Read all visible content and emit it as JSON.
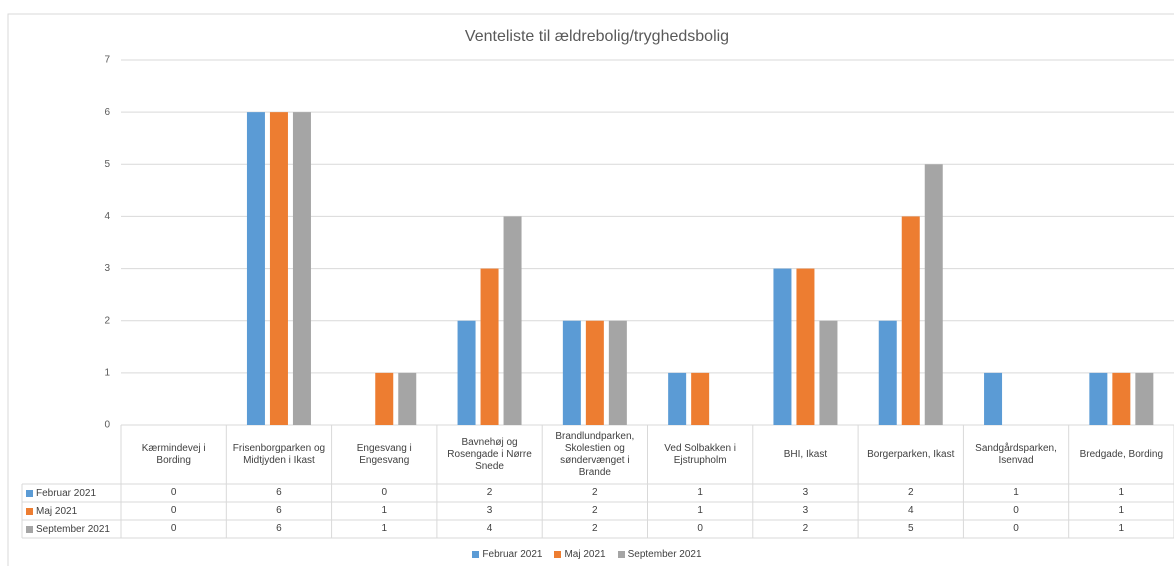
{
  "chart_data": {
    "type": "bar",
    "title": "Venteliste til ældrebolig/tryghedsbolig",
    "categories": [
      "Kærmindevej i Bording",
      "Frisenborgparken og Midtjyden i Ikast",
      "Engesvang i Engesvang",
      "Bavnehøj og Rosengade i Nørre Snede",
      "Brandlundparken, Skolestien og søndervænget i Brande",
      "Ved Solbakken i Ejstrupholm",
      "BHI, Ikast",
      "Borgerparken, Ikast",
      "Sandgårdsparken, Isenvad",
      "Bredgade, Bording"
    ],
    "series": [
      {
        "name": "Februar 2021",
        "color": "#5b9bd5",
        "values": [
          0,
          6,
          0,
          2,
          2,
          1,
          3,
          2,
          1,
          1
        ]
      },
      {
        "name": "Maj 2021",
        "color": "#ed7d31",
        "values": [
          0,
          6,
          1,
          3,
          2,
          1,
          3,
          4,
          0,
          1
        ]
      },
      {
        "name": "September 2021",
        "color": "#a5a5a5",
        "values": [
          0,
          6,
          1,
          4,
          2,
          0,
          2,
          5,
          0,
          1
        ]
      }
    ],
    "ylim": [
      0,
      7
    ],
    "yticks": [
      0,
      1,
      2,
      3,
      4,
      5,
      6,
      7
    ],
    "grid": true,
    "data_table": true,
    "legend": "bottom"
  }
}
